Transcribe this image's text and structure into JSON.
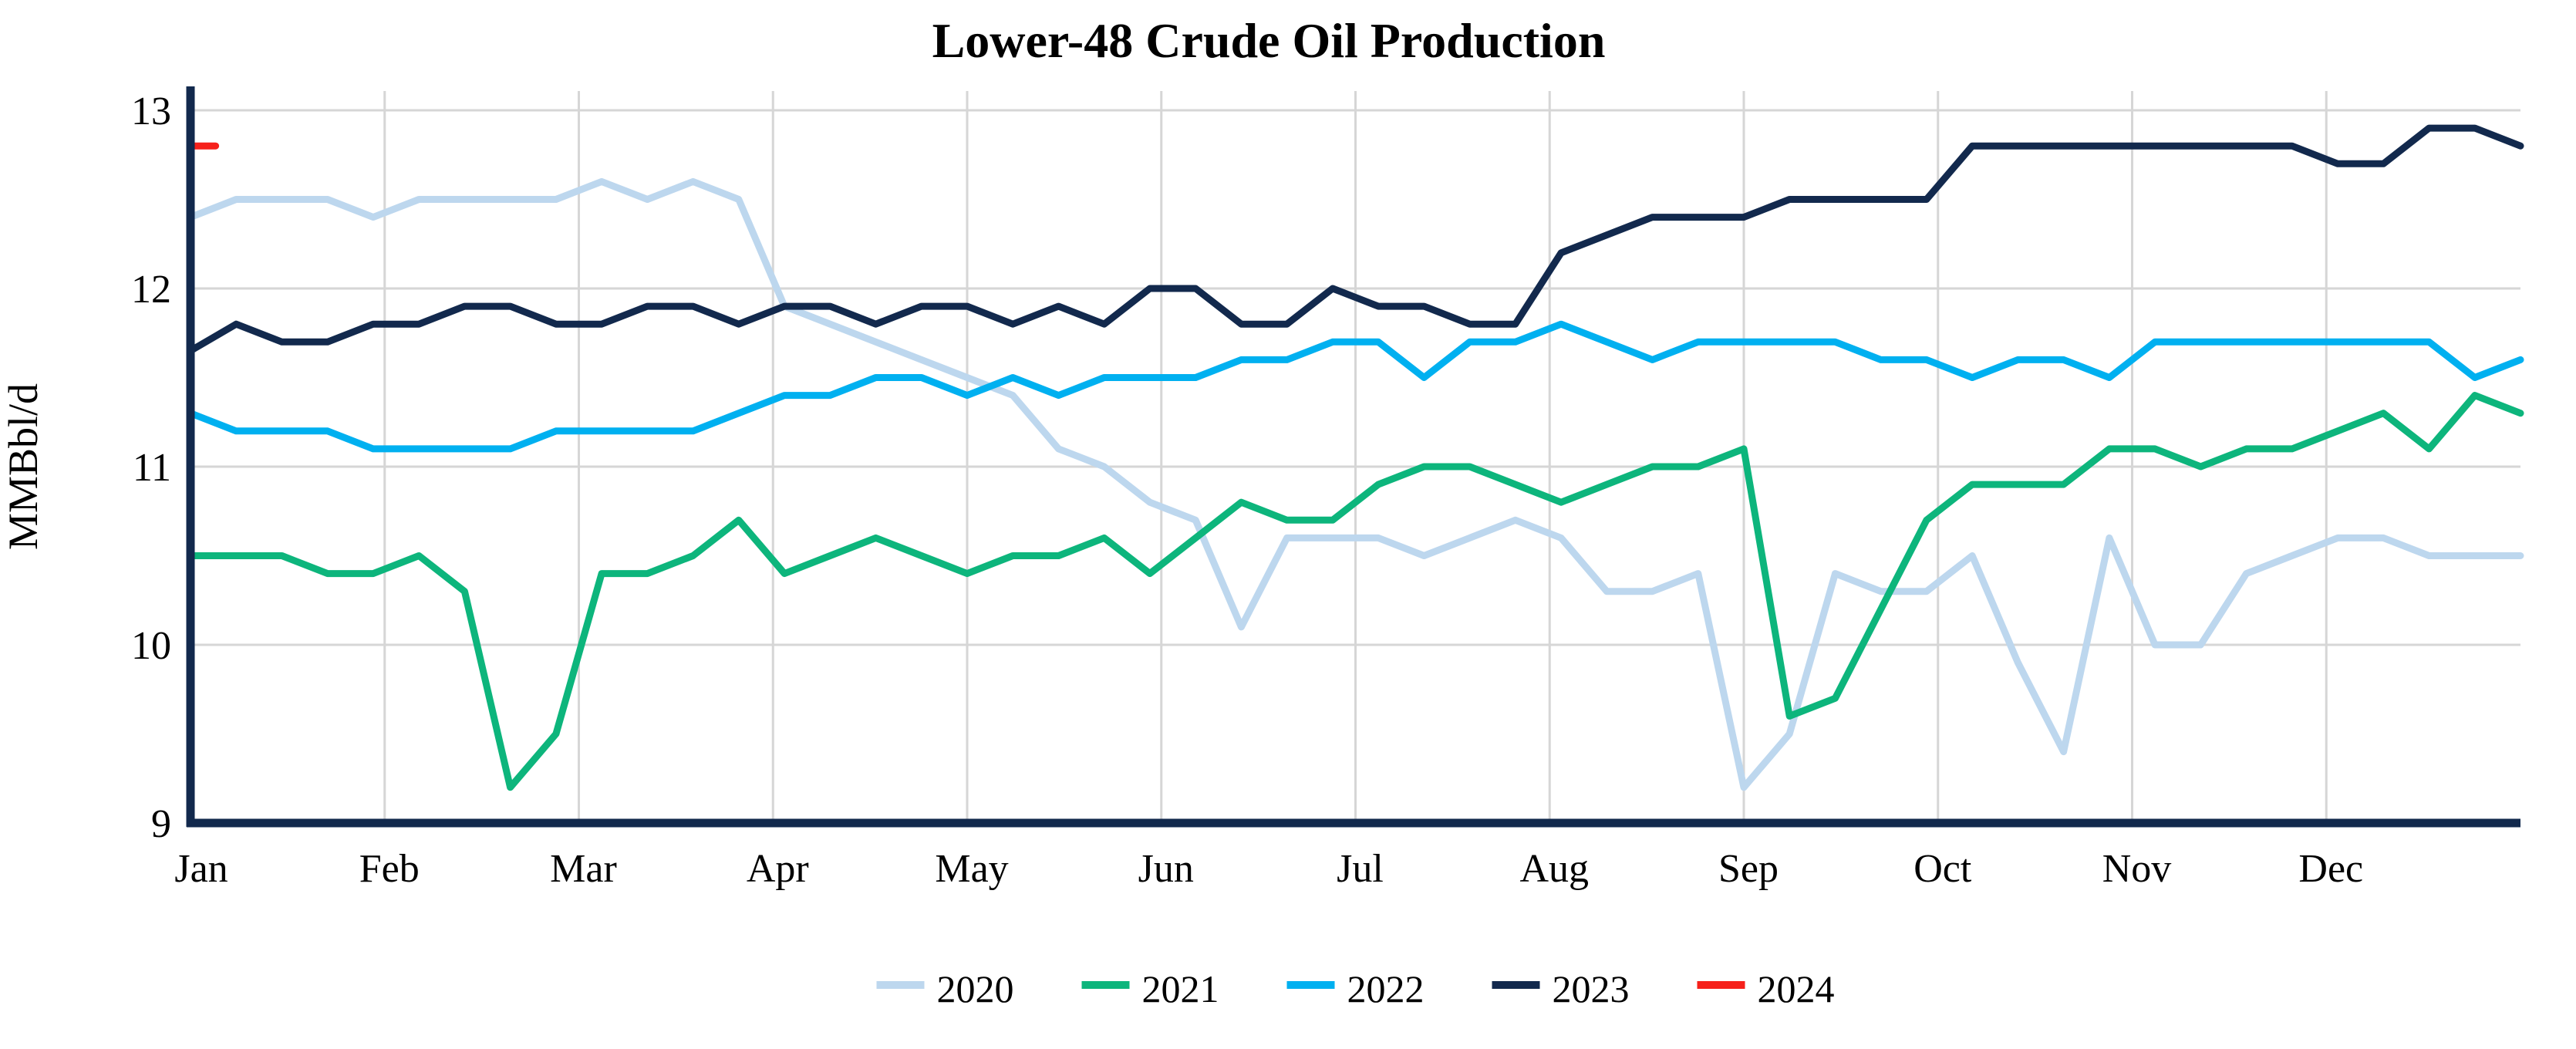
{
  "title": "Lower-48 Crude Oil Production",
  "y_axis": {
    "label": "MMBbl/d",
    "ticks": [
      13,
      12,
      11,
      10,
      9
    ],
    "min": 9,
    "max": 13
  },
  "x_axis": {
    "months": [
      "Jan",
      "Feb",
      "Mar",
      "Apr",
      "May",
      "Jun",
      "Jul",
      "Aug",
      "Sep",
      "Oct",
      "Nov",
      "Dec"
    ]
  },
  "colors": {
    "grid": "#d6d6d6",
    "axis": "#12294d",
    "background": "#ffffff"
  },
  "chart_data": {
    "type": "line",
    "title": "Lower-48 Crude Oil Production",
    "ylabel": "MMBbl/d",
    "ylim": [
      9,
      13
    ],
    "x_unit": "weekly, Jan through Dec",
    "grid": "on",
    "legend_position": "bottom-center",
    "weeks": 52,
    "series": [
      {
        "name": "2020",
        "color": "#bdd7ee",
        "values": [
          12.4,
          12.5,
          12.5,
          12.5,
          12.4,
          12.5,
          12.5,
          12.5,
          12.5,
          12.6,
          12.5,
          12.6,
          12.5,
          11.9,
          11.8,
          11.7,
          11.6,
          11.5,
          11.4,
          11.1,
          11.0,
          10.8,
          10.7,
          10.1,
          10.6,
          10.6,
          10.6,
          10.5,
          10.6,
          10.7,
          10.6,
          10.3,
          10.3,
          10.4,
          9.2,
          9.5,
          10.4,
          10.3,
          10.3,
          10.5,
          9.9,
          9.4,
          10.6,
          10.0,
          10.0,
          10.4,
          10.5,
          10.6,
          10.6,
          10.5,
          10.5,
          10.5
        ]
      },
      {
        "name": "2021",
        "color": "#0db57c",
        "values": [
          10.5,
          10.5,
          10.5,
          10.4,
          10.4,
          10.5,
          10.3,
          9.2,
          9.5,
          10.4,
          10.4,
          10.5,
          10.7,
          10.4,
          10.5,
          10.6,
          10.5,
          10.4,
          10.5,
          10.5,
          10.6,
          10.4,
          10.6,
          10.8,
          10.7,
          10.7,
          10.9,
          11.0,
          11.0,
          10.9,
          10.8,
          10.9,
          11.0,
          11.0,
          11.1,
          9.6,
          9.7,
          10.2,
          10.7,
          10.9,
          10.9,
          10.9,
          11.1,
          11.1,
          11.0,
          11.1,
          11.1,
          11.2,
          11.3,
          11.1,
          11.4,
          11.3
        ]
      },
      {
        "name": "2022",
        "color": "#00b0f0",
        "values": [
          11.3,
          11.2,
          11.2,
          11.2,
          11.1,
          11.1,
          11.1,
          11.1,
          11.2,
          11.2,
          11.2,
          11.2,
          11.3,
          11.4,
          11.4,
          11.5,
          11.5,
          11.4,
          11.5,
          11.4,
          11.5,
          11.5,
          11.5,
          11.6,
          11.6,
          11.7,
          11.7,
          11.5,
          11.7,
          11.7,
          11.8,
          11.7,
          11.6,
          11.7,
          11.7,
          11.7,
          11.7,
          11.6,
          11.6,
          11.5,
          11.6,
          11.6,
          11.5,
          11.7,
          11.7,
          11.7,
          11.7,
          11.7,
          11.7,
          11.7,
          11.5,
          11.6
        ]
      },
      {
        "name": "2023",
        "color": "#12294d",
        "values": [
          11.65,
          11.8,
          11.7,
          11.7,
          11.8,
          11.8,
          11.9,
          11.9,
          11.8,
          11.8,
          11.9,
          11.9,
          11.8,
          11.9,
          11.9,
          11.8,
          11.9,
          11.9,
          11.8,
          11.9,
          11.8,
          12.0,
          12.0,
          11.8,
          11.8,
          12.0,
          11.9,
          11.9,
          11.8,
          11.8,
          12.2,
          12.3,
          12.4,
          12.4,
          12.4,
          12.5,
          12.5,
          12.5,
          12.5,
          12.8,
          12.8,
          12.8,
          12.8,
          12.8,
          12.8,
          12.8,
          12.8,
          12.7,
          12.7,
          12.9,
          12.9,
          12.8
        ]
      },
      {
        "name": "2024",
        "color": "#f6211b",
        "x": [
          0,
          0.55
        ],
        "values": [
          12.8,
          12.8
        ]
      }
    ]
  }
}
